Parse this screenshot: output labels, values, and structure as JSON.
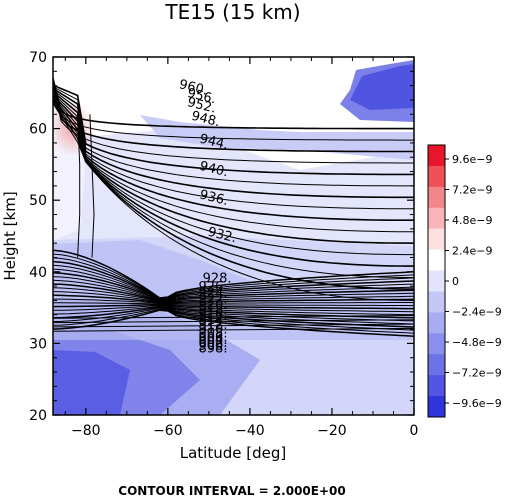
{
  "chart_data": {
    "type": "heatmap",
    "title": "TE15 (15 km)",
    "xlabel": "Latitude [deg]",
    "ylabel": "Height [km]",
    "xlim": [
      -88,
      0
    ],
    "ylim": [
      20,
      70
    ],
    "x_ticks": [
      -80,
      -60,
      -40,
      -20,
      0
    ],
    "x_tick_labels": [
      "−80",
      "−60",
      "−40",
      "−20",
      "0"
    ],
    "y_ticks": [
      20,
      30,
      40,
      50,
      60,
      70
    ],
    "y_tick_labels": [
      "20",
      "30",
      "40",
      "50",
      "60",
      "70"
    ],
    "colorbar": {
      "labels": [
        "9.6e−9",
        "7.2e−9",
        "4.8e−9",
        "2.4e−9",
        "0",
        "−2.4e−9",
        "−4.8e−9",
        "−7.2e−9",
        "−9.6e−9"
      ],
      "values": [
        9.6e-09,
        7.2e-09,
        4.8e-09,
        2.4e-09,
        0,
        -2.4e-09,
        -4.8e-09,
        -7.2e-09,
        -9.6e-09
      ],
      "colors": [
        "#e8162a",
        "#ef5058",
        "#f3868a",
        "#f8b6b8",
        "#fde0e0",
        "#ffffff",
        "#e2e4fb",
        "#c5c8f6",
        "#a8acf1",
        "#8b8fec",
        "#6e72e7",
        "#5155e2",
        "#2f35dc"
      ]
    },
    "contour_labels": [
      "960.",
      "956.",
      "952.",
      "948.",
      "944.",
      "940.",
      "936.",
      "932.",
      "928.",
      "926.",
      "924.",
      "922.",
      "920.",
      "918.",
      "916.",
      "914.",
      "912.",
      "910.",
      "908.",
      "906.",
      "904.",
      "902.",
      "900.",
      "898."
    ],
    "contour_interval_text": "CONTOUR INTERVAL = 2.000E+00"
  }
}
